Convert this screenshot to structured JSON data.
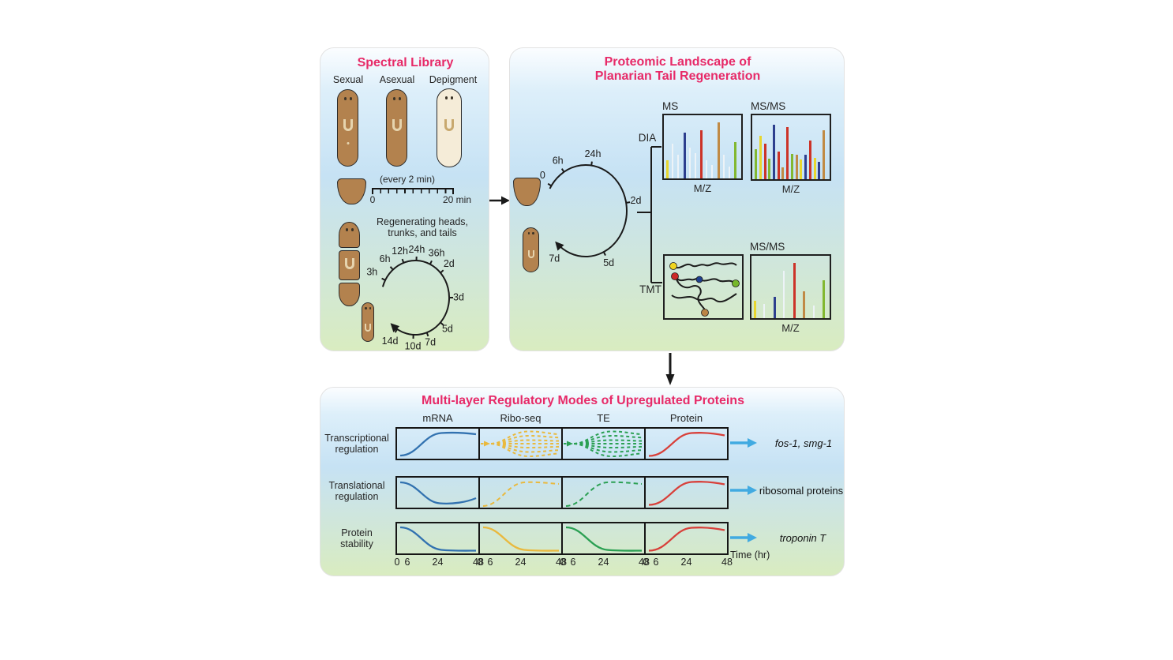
{
  "colors": {
    "accent_pink": "#e72a68",
    "text_dark": "#1a1a1a",
    "arrow_blue": "#41aae1",
    "worm_brown": "#b3824e",
    "worm_pale": "#f5ecd8",
    "curve_blue": "#3272b0",
    "curve_yellow": "#e9b93e",
    "curve_green": "#2ba053",
    "curve_red": "#d8403a"
  },
  "library": {
    "title": "Spectral Library",
    "worm_labels": [
      "Sexual",
      "Asexual",
      "Depigment"
    ],
    "sampling_note": "(every 2 min)",
    "ruler_start": "0",
    "ruler_end": "20 min",
    "regen_caption_line1": "Regenerating heads,",
    "regen_caption_line2": "trunks, and tails",
    "timepoints": [
      "3h",
      "6h",
      "12h",
      "24h",
      "36h",
      "2d",
      "3d",
      "5d",
      "7d",
      "10d",
      "14d"
    ]
  },
  "proteomic": {
    "title_line1": "Proteomic Landscape of",
    "title_line2": "Planarian Tail Regeneration",
    "timepoints": [
      "0",
      "6h",
      "24h",
      "2d",
      "5d",
      "7d"
    ],
    "method_top": "DIA",
    "method_bottom": "TMT",
    "ms_plot": {
      "label": "MS",
      "axis_label": "M/Z",
      "bars": [
        {
          "c": "#e8d62e",
          "h": 0.3
        },
        {
          "c": "#edf3f7",
          "h": 0.58
        },
        {
          "c": "#edf3f7",
          "h": 0.4
        },
        {
          "c": "#2d3f8e",
          "h": 0.76
        },
        {
          "c": "#edf3f7",
          "h": 0.52
        },
        {
          "c": "#edf3f7",
          "h": 0.42
        },
        {
          "c": "#cc3328",
          "h": 0.8
        },
        {
          "c": "#edf3f7",
          "h": 0.3
        },
        {
          "c": "#edf3f7",
          "h": 0.22
        },
        {
          "c": "#c08a45",
          "h": 0.94
        },
        {
          "c": "#edf3f7",
          "h": 0.4
        },
        {
          "c": "#edf3f7",
          "h": 0.2
        },
        {
          "c": "#82b831",
          "h": 0.6
        }
      ]
    },
    "msms_dia_plot": {
      "label": "MS/MS",
      "axis_label": "M/Z",
      "bars": [
        {
          "c": "#82b831",
          "h": 0.5
        },
        {
          "c": "#e8d62e",
          "h": 0.72
        },
        {
          "c": "#cc3328",
          "h": 0.58
        },
        {
          "c": "#82b831",
          "h": 0.34
        },
        {
          "c": "#2d3f8e",
          "h": 0.9
        },
        {
          "c": "#cc3328",
          "h": 0.46
        },
        {
          "c": "#c08a45",
          "h": 0.2
        },
        {
          "c": "#cc3328",
          "h": 0.86
        },
        {
          "c": "#82b831",
          "h": 0.42
        },
        {
          "c": "#c08a45",
          "h": 0.4
        },
        {
          "c": "#e8d62e",
          "h": 0.32
        },
        {
          "c": "#2d3f8e",
          "h": 0.4
        },
        {
          "c": "#cc3328",
          "h": 0.64
        },
        {
          "c": "#e8d62e",
          "h": 0.35
        },
        {
          "c": "#2d3f8e",
          "h": 0.28
        },
        {
          "c": "#c08a45",
          "h": 0.8
        }
      ]
    },
    "msms_tmt_plot": {
      "label": "MS/MS",
      "axis_label": "M/Z",
      "bars": [
        {
          "c": "#e8d62e",
          "h": 0.3
        },
        {
          "c": "#edf3f7",
          "h": 0.24
        },
        {
          "c": "#2d3f8e",
          "h": 0.36
        },
        {
          "c": "#edf3f7",
          "h": 0.8
        },
        {
          "c": "#cc3328",
          "h": 0.94
        },
        {
          "c": "#c08a45",
          "h": 0.46
        },
        {
          "c": "#edf3f7",
          "h": 0.22
        },
        {
          "c": "#82b831",
          "h": 0.64
        }
      ]
    },
    "tmt_tag_colors": [
      "#f0d520",
      "#cc2828",
      "#1f3f8f",
      "#76b82a",
      "#bb8545"
    ]
  },
  "regulation": {
    "title": "Multi-layer Regulatory Modes of Upregulated Proteins",
    "columns": [
      "mRNA",
      "Ribo-seq",
      "TE",
      "Protein"
    ],
    "rows": [
      {
        "label_line1": "Transcriptional",
        "label_line2": "regulation",
        "output": "fos-1, smg-1",
        "output_italic": true
      },
      {
        "label_line1": "Translational",
        "label_line2": "regulation",
        "output": "ribosomal proteins",
        "output_italic": false
      },
      {
        "label_line1": "Protein",
        "label_line2": "stability",
        "output": "troponin T",
        "output_italic": true
      }
    ],
    "axis_ticks": [
      "0",
      "6",
      "24",
      "48"
    ],
    "axis_label": "Time (hr)"
  }
}
